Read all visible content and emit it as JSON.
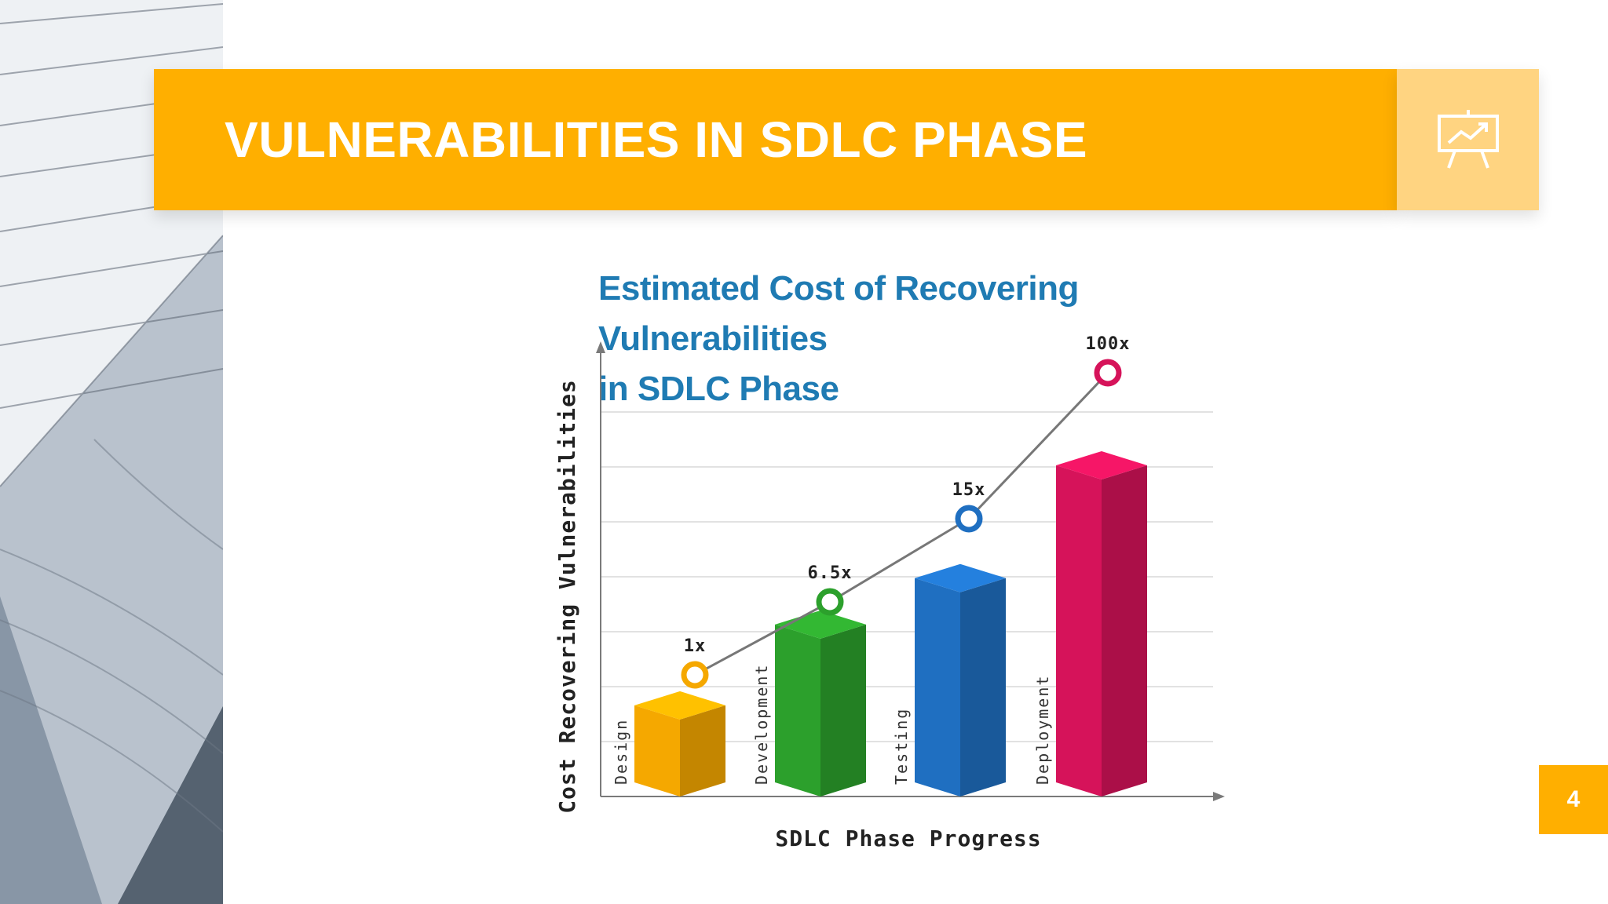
{
  "slide": {
    "title": "VULNERABILITIES IN SDLC PHASE",
    "page_number": "4",
    "accent_color": "#ffaf00",
    "icon": "presentation-chart-icon"
  },
  "chart_data": {
    "type": "bar",
    "title": "Estimated Cost of Recovering Vulnerabilities in SDLC Phase",
    "title_lines": [
      "Estimated Cost of Recovering Vulnerabilities",
      "in SDLC Phase"
    ],
    "xlabel": "SDLC Phase Progress",
    "ylabel": "Cost Recovering Vulnerabilities",
    "categories": [
      "Design",
      "Development",
      "Testing",
      "Deployment"
    ],
    "values": [
      1,
      6.5,
      15,
      100
    ],
    "value_labels": [
      "1x",
      "6.5x",
      "15x",
      "100x"
    ],
    "colors": [
      "#f5a800",
      "#2ca02c",
      "#1f6fc1",
      "#d6135a"
    ],
    "grid": true,
    "legend": "none",
    "overlay": "line-with-markers"
  }
}
